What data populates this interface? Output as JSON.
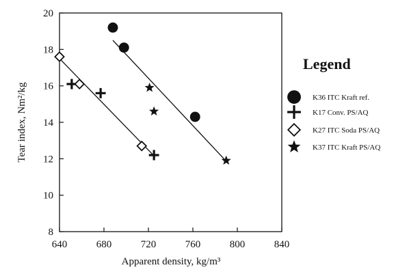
{
  "chart_data": {
    "type": "scatter",
    "title": "",
    "xlabel": "Apparent density, kg/m³",
    "ylabel": "Tear index, Nm²/kg",
    "xlim": [
      640,
      840
    ],
    "ylim": [
      8,
      20
    ],
    "xticks": [
      640,
      680,
      720,
      760,
      800,
      840
    ],
    "yticks": [
      8,
      10,
      12,
      14,
      16,
      18,
      20
    ],
    "legend": {
      "title": "Legend",
      "position": "right"
    },
    "series": [
      {
        "name": "K36 ITC Kraft ref.",
        "marker": "circle",
        "points": [
          [
            688,
            19.2
          ],
          [
            698,
            18.1
          ],
          [
            762,
            14.3
          ]
        ]
      },
      {
        "name": "K17 Conv. PS/AQ",
        "marker": "cross",
        "points": [
          [
            651,
            16.1
          ],
          [
            677,
            15.6
          ],
          [
            725,
            12.2
          ]
        ]
      },
      {
        "name": "K27 ITC Soda PS/AQ",
        "marker": "diamond",
        "points": [
          [
            640,
            17.6
          ],
          [
            658,
            16.1
          ],
          [
            714,
            12.7
          ]
        ]
      },
      {
        "name": "K37 ITC Kraft PS/AQ",
        "marker": "star",
        "points": [
          [
            721,
            15.9
          ],
          [
            725,
            14.6
          ],
          [
            790,
            11.9
          ]
        ]
      }
    ],
    "trend_lines": [
      {
        "x": [
          688,
          791
        ],
        "y": [
          18.5,
          11.8
        ]
      },
      {
        "x": [
          640,
          726
        ],
        "y": [
          17.5,
          12.1
        ]
      }
    ]
  }
}
